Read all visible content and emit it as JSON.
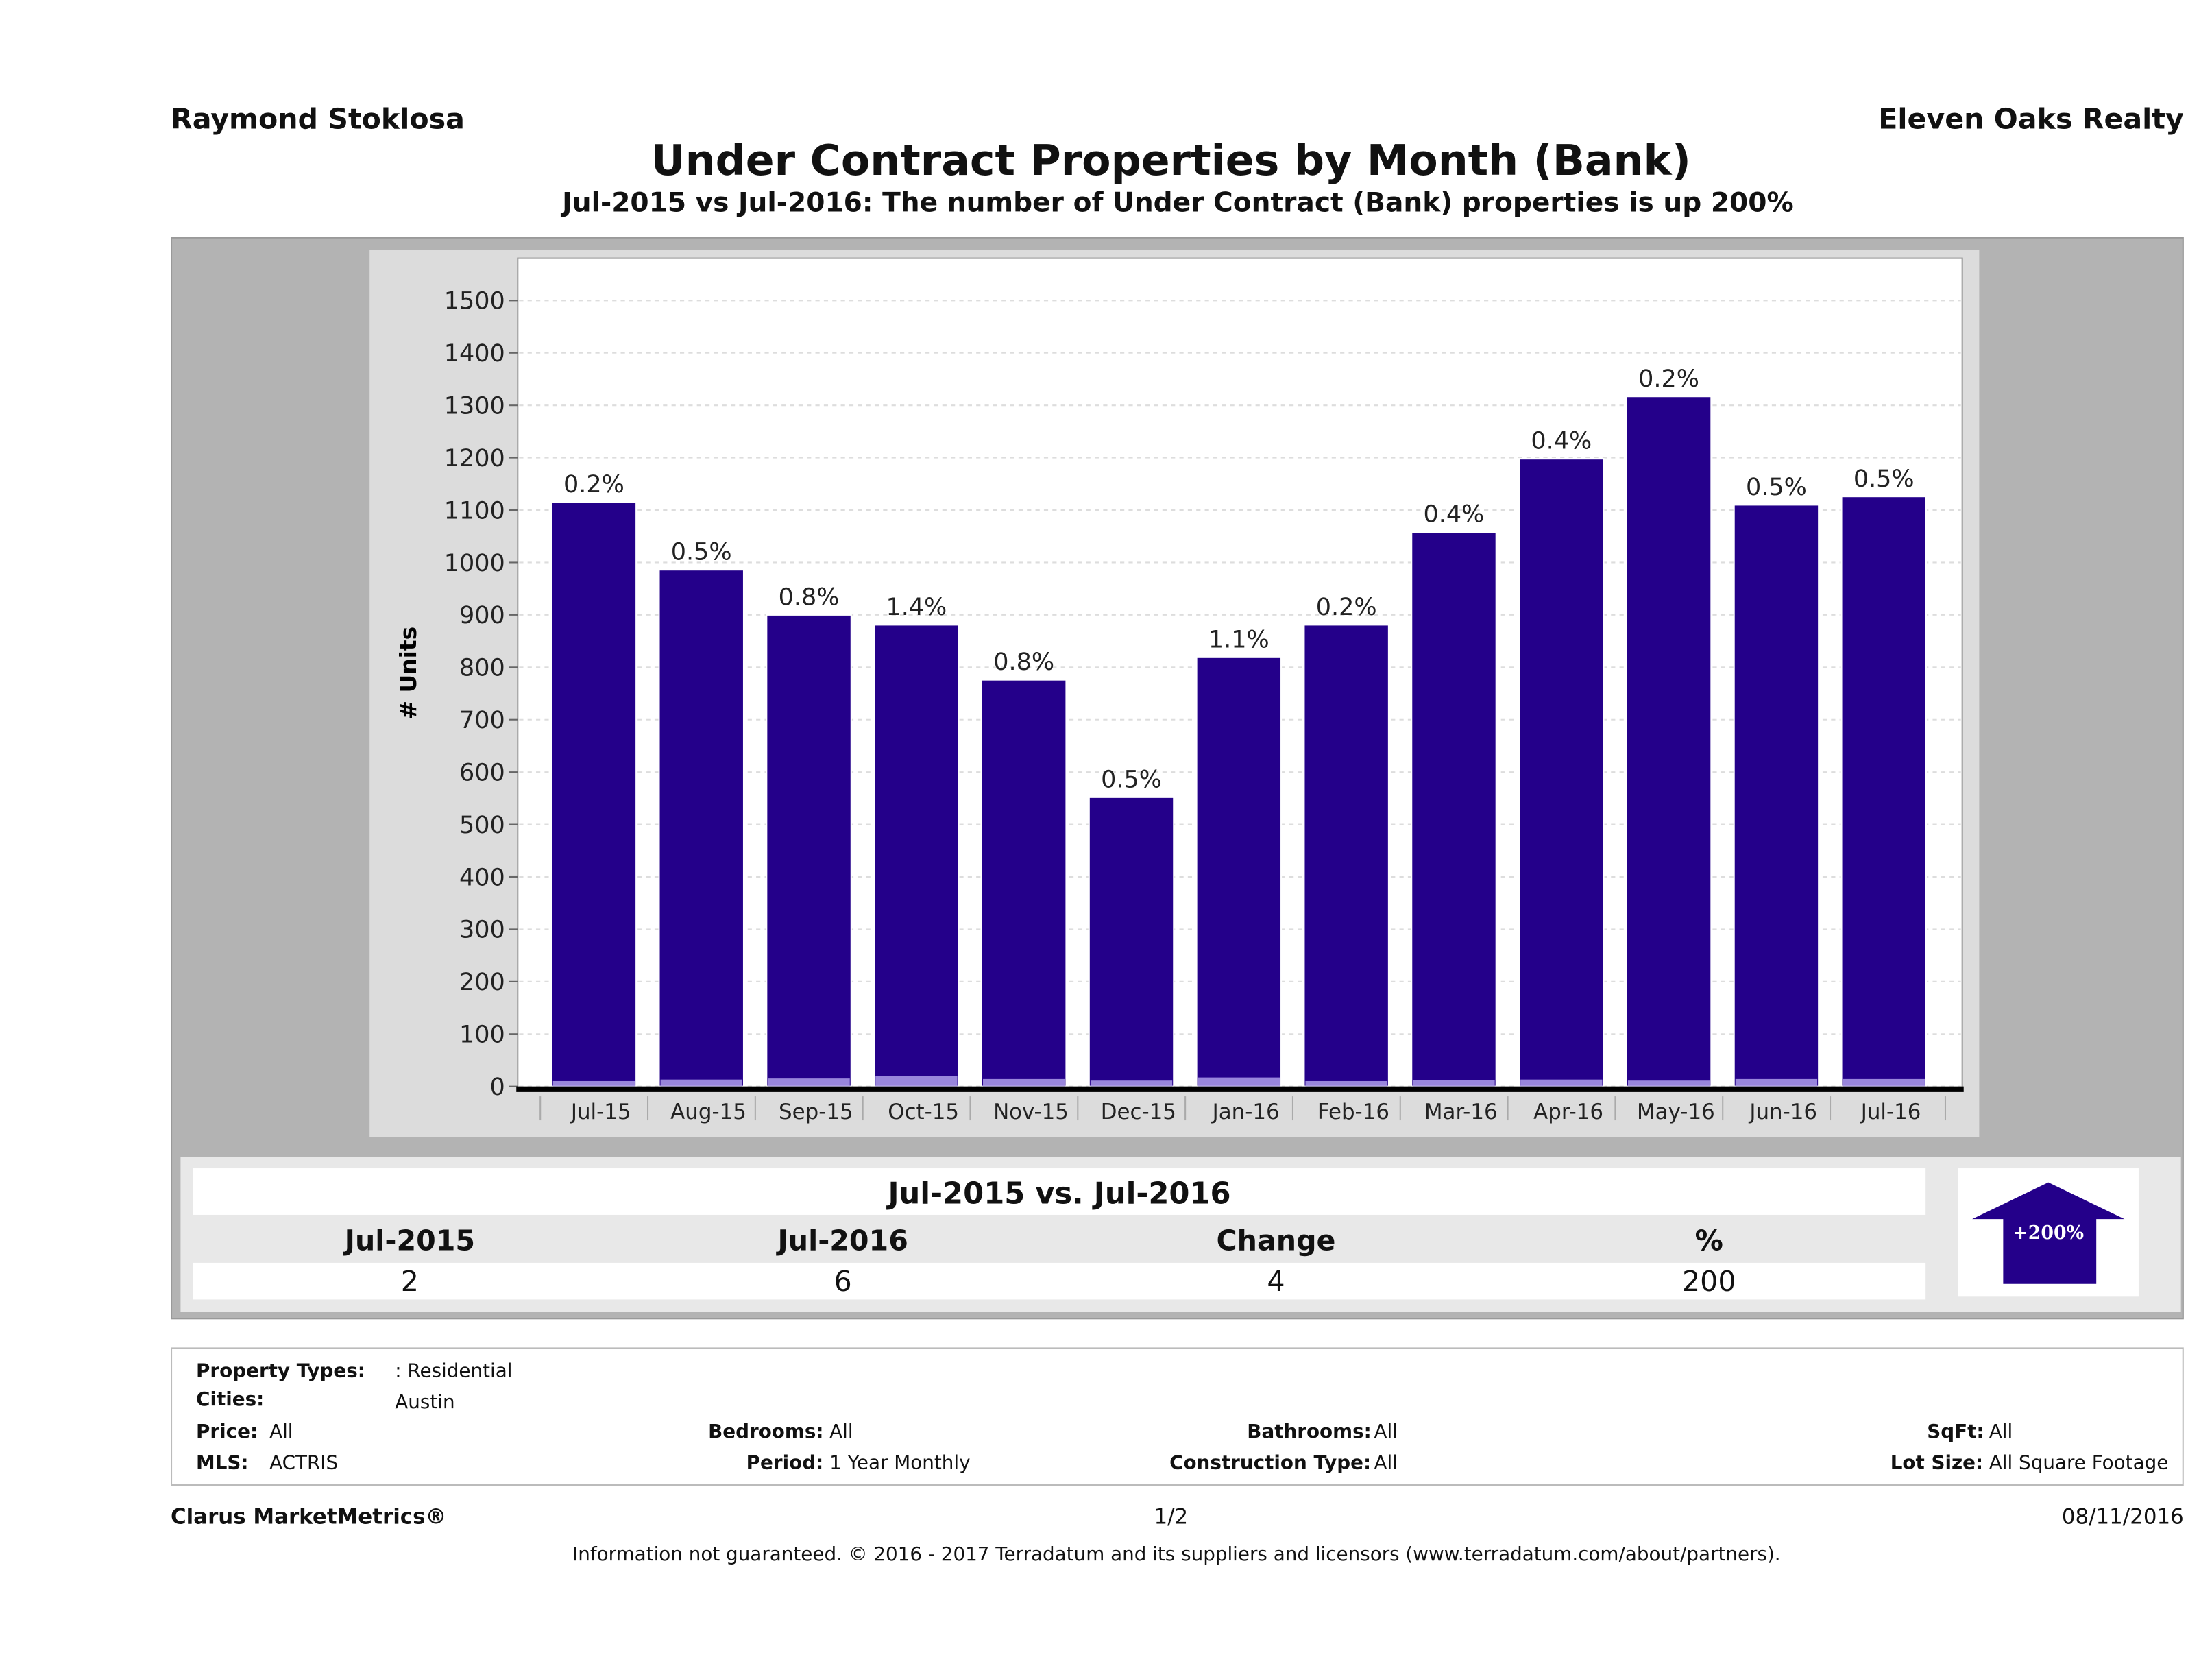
{
  "header": {
    "agent": "Raymond Stoklosa",
    "broker": "Eleven Oaks Realty",
    "title": "Under Contract Properties by Month (Bank)",
    "subtitle": "Jul-2015 vs Jul-2016: The number of Under Contract (Bank)  properties is up 200%"
  },
  "colors": {
    "bar": "#24008a",
    "bank_bar": "#b7a8f0",
    "panel": "#b3b3b3",
    "chart_bg": "#dcdcdc"
  },
  "chart_data": {
    "type": "bar",
    "title": "",
    "xlabel": "",
    "ylabel": "# Units",
    "ylim": [
      0,
      1500
    ],
    "yticks": [
      "0",
      "100",
      "200",
      "300",
      "400",
      "500",
      "600",
      "700",
      "800",
      "900",
      "1000",
      "1100",
      "1200",
      "1300",
      "1400",
      "1500"
    ],
    "grid": true,
    "categories": [
      "Jul-15",
      "Aug-15",
      "Sep-15",
      "Oct-15",
      "Nov-15",
      "Dec-15",
      "Jan-16",
      "Feb-16",
      "Mar-16",
      "Apr-16",
      "May-16",
      "Jun-16",
      "Jul-16"
    ],
    "series": [
      {
        "values": [
          1115,
          986,
          900,
          881,
          776,
          552,
          819,
          881,
          1058,
          1198,
          1317,
          1110,
          1126
        ],
        "labels": [
          "0.2%",
          "0.5%",
          "0.8%",
          "1.4%",
          "0.8%",
          "0.5%",
          "1.1%",
          "0.2%",
          "0.4%",
          "0.4%",
          "0.2%",
          "0.5%",
          "0.5%"
        ]
      },
      {
        "values": [
          2,
          5,
          7,
          12,
          6,
          3,
          9,
          2,
          4,
          5,
          3,
          6,
          6
        ]
      }
    ]
  },
  "summary": {
    "title": "Jul-2015 vs. Jul-2016",
    "headers": [
      "Jul-2015",
      "Jul-2016",
      "Change",
      "%"
    ],
    "values": [
      "2",
      "6",
      "4",
      "200"
    ],
    "arrow_label": "+200%",
    "arrow_icon": "arrow-up-icon"
  },
  "filters": {
    "property_types": {
      "label": "Property Types:",
      "value": ": Residential"
    },
    "cities": {
      "label": "Cities:",
      "value": "Austin"
    },
    "price": {
      "label": "Price:",
      "value": "All"
    },
    "bedrooms": {
      "label": "Bedrooms:",
      "value": "All"
    },
    "bathrooms": {
      "label": "Bathrooms:",
      "value": "All"
    },
    "sqft": {
      "label": "SqFt:",
      "value": "All"
    },
    "mls": {
      "label": "MLS:",
      "value": "ACTRIS"
    },
    "period": {
      "label": "Period:",
      "value": "1 Year Monthly"
    },
    "construction": {
      "label": "Construction Type:",
      "value": "All"
    },
    "lot_size": {
      "label": "Lot Size:",
      "value": "All Square Footage"
    }
  },
  "footer": {
    "brand": "Clarus MarketMetrics®",
    "page": "1/2",
    "date": "08/11/2016",
    "disclaimer": "Information not guaranteed. © 2016 - 2017 Terradatum and its suppliers and licensors (www.terradatum.com/about/partners)."
  }
}
